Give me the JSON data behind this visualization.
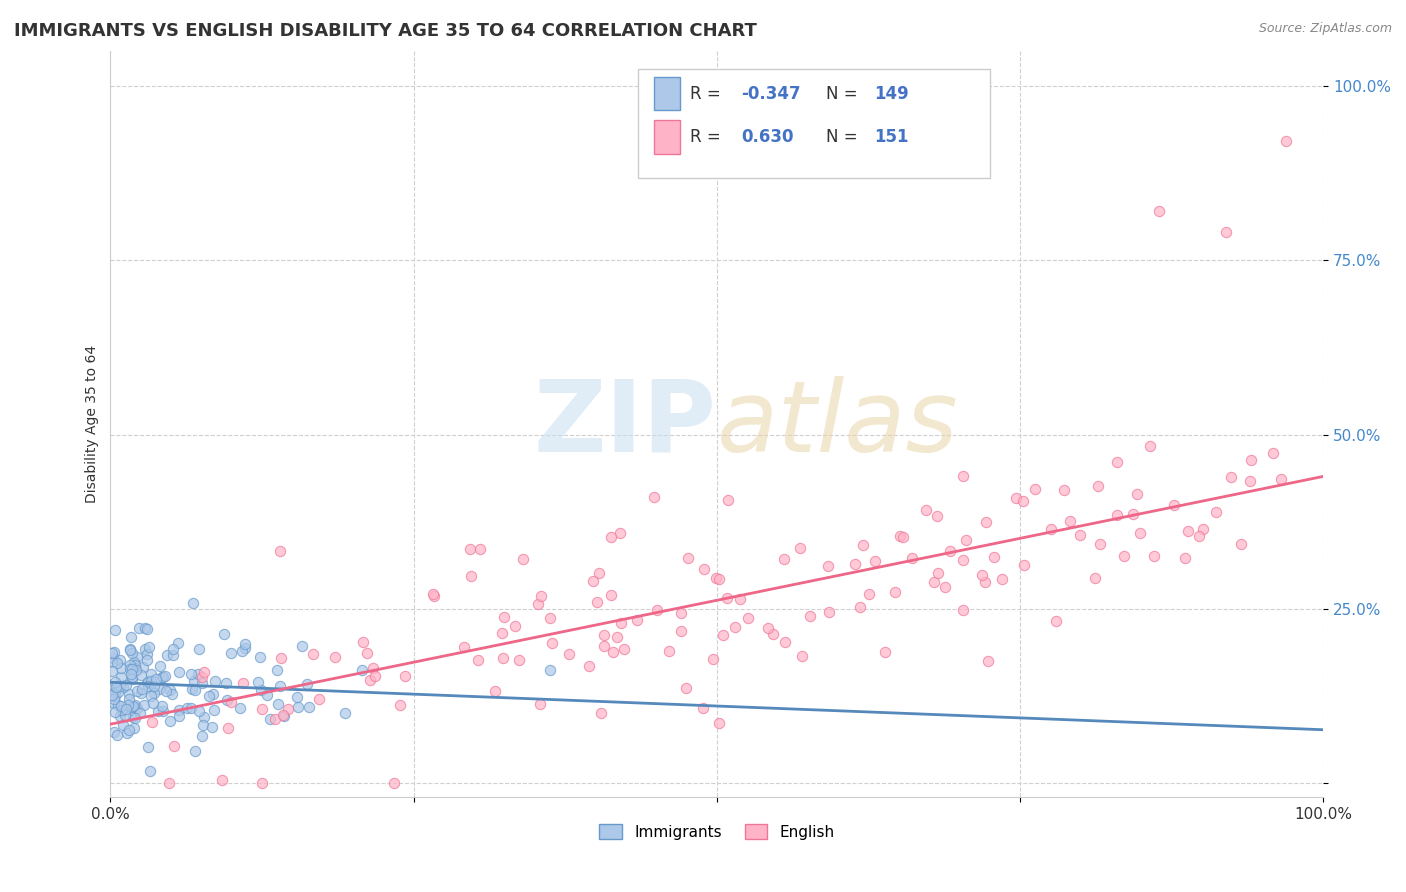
{
  "title": "IMMIGRANTS VS ENGLISH DISABILITY AGE 35 TO 64 CORRELATION CHART",
  "source_text": "Source: ZipAtlas.com",
  "ylabel": "Disability Age 35 to 64",
  "xlim": [
    0.0,
    1.0
  ],
  "ylim": [
    -0.02,
    1.05
  ],
  "immigrants_R": -0.347,
  "immigrants_N": 149,
  "english_R": 0.63,
  "english_N": 151,
  "immigrants_color": "#adc8e8",
  "english_color": "#ffb3c6",
  "immigrants_edge_color": "#6699cc",
  "english_edge_color": "#ee7799",
  "immigrants_line_color": "#5588bb",
  "english_line_color": "#ee6688",
  "background_color": "#ffffff",
  "grid_color": "#d0d0d0",
  "tick_color": "#4488cc",
  "title_fontsize": 13,
  "axis_label_fontsize": 10,
  "tick_fontsize": 11,
  "legend_fontsize": 12,
  "seed": 77,
  "imm_intercept": 0.145,
  "imm_slope": -0.068,
  "eng_intercept": 0.085,
  "eng_slope": 0.355
}
